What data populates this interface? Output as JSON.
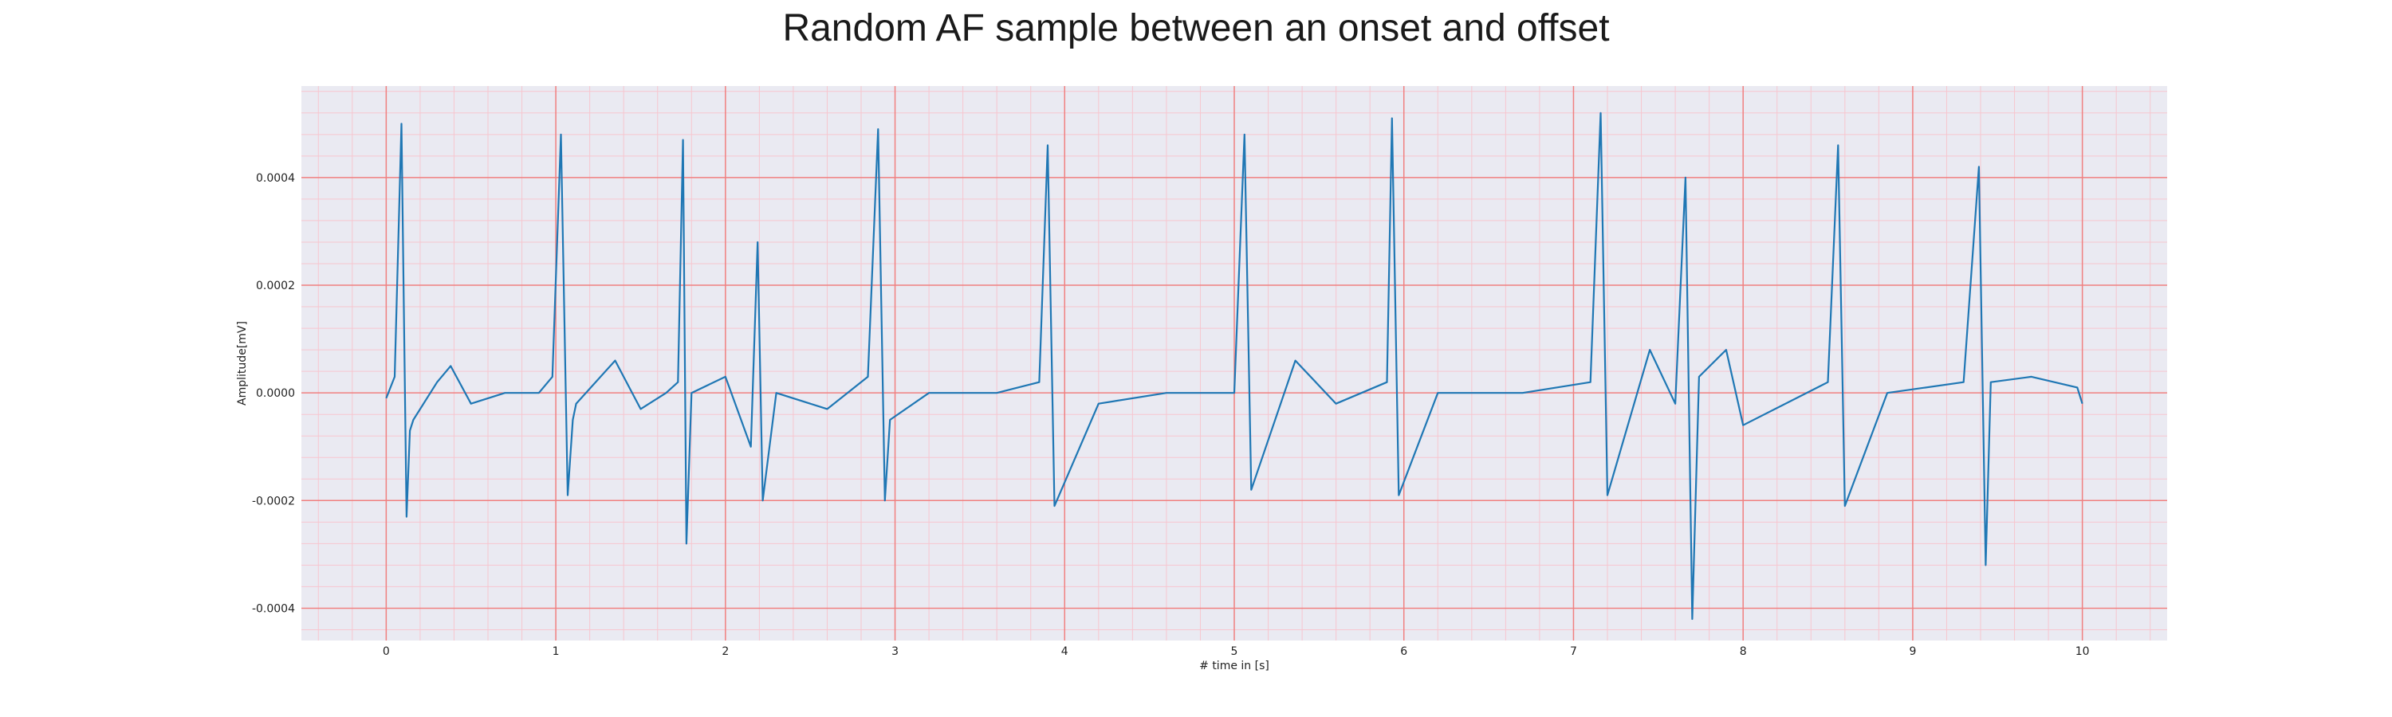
{
  "chart_data": {
    "type": "line",
    "title": "Random AF sample between an onset and offset",
    "xlabel": "# time in [s]",
    "ylabel": "Amplitude[mV]",
    "xlim": [
      -0.5,
      10.5
    ],
    "ylim": [
      -0.00046,
      0.00057
    ],
    "xticks": [
      0,
      1,
      2,
      3,
      4,
      5,
      6,
      7,
      8,
      9,
      10
    ],
    "yticks": [
      -0.0004,
      -0.0002,
      0.0,
      0.0002,
      0.0004
    ],
    "ytick_labels": [
      "-0.0004",
      "-0.0002",
      "0.0000",
      "0.0002",
      "0.0004"
    ],
    "grid": "major red, minor pink",
    "colors": {
      "line": "#1f77b4",
      "background": "#eaeaf2",
      "major_grid": "#f08080",
      "minor_grid": "#f7c6cf"
    },
    "series": [
      {
        "x": [
          0.0,
          0.05,
          0.09,
          0.12,
          0.14,
          0.16,
          0.3,
          0.38,
          0.5,
          0.7,
          0.9,
          0.98,
          1.03,
          1.07,
          1.1,
          1.12,
          1.35,
          1.5,
          1.65,
          1.72,
          1.75,
          1.77,
          1.8,
          2.0,
          2.15,
          2.19,
          2.22,
          2.3,
          2.6,
          2.84,
          2.9,
          2.94,
          2.97,
          3.2,
          3.6,
          3.85,
          3.9,
          3.94,
          4.2,
          4.6,
          5.0,
          5.06,
          5.1,
          5.36,
          5.6,
          5.9,
          5.93,
          5.97,
          6.2,
          6.7,
          7.1,
          7.16,
          7.2,
          7.45,
          7.6,
          7.66,
          7.7,
          7.74,
          7.9,
          8.0,
          8.5,
          8.56,
          8.6,
          8.85,
          9.3,
          9.39,
          9.43,
          9.46,
          9.7,
          9.97,
          10.0
        ],
        "y": [
          -1e-05,
          3e-05,
          0.0005,
          -0.00023,
          -7e-05,
          -5e-05,
          2e-05,
          5e-05,
          -2e-05,
          0.0,
          0.0,
          3e-05,
          0.00048,
          -0.00019,
          -5e-05,
          -2e-05,
          6e-05,
          -3e-05,
          0.0,
          2e-05,
          0.00047,
          -0.00028,
          0.0,
          3e-05,
          -0.0001,
          0.00028,
          -0.0002,
          0.0,
          -3e-05,
          3e-05,
          0.00049,
          -0.0002,
          -5e-05,
          0.0,
          0.0,
          2e-05,
          0.00046,
          -0.00021,
          -2e-05,
          0.0,
          0.0,
          0.00048,
          -0.00018,
          6e-05,
          -2e-05,
          2e-05,
          0.00051,
          -0.00019,
          0.0,
          0.0,
          2e-05,
          0.00052,
          -0.00019,
          8e-05,
          -2e-05,
          0.0004,
          -0.00042,
          3e-05,
          8e-05,
          -6e-05,
          2e-05,
          0.00046,
          -0.00021,
          0.0,
          2e-05,
          0.00042,
          -0.00032,
          2e-05,
          3e-05,
          1e-05,
          -2e-05
        ]
      }
    ]
  }
}
